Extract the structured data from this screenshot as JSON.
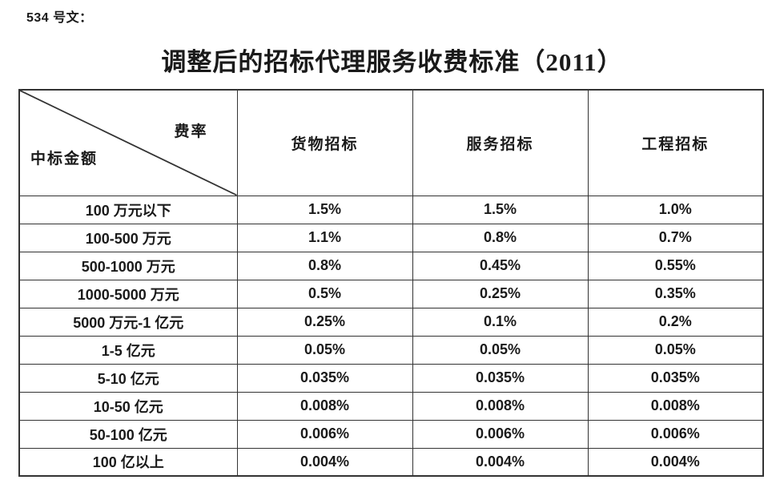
{
  "page": {
    "doc_label": "534 号文：",
    "title": "调整后的招标代理服务收费标准（2011）"
  },
  "table": {
    "corner": {
      "top_right_label": "费率",
      "bottom_left_label": "中标金额"
    },
    "columns": [
      "货物招标",
      "服务招标",
      "工程招标"
    ],
    "rows": [
      {
        "amount": "100 万元以下",
        "values": [
          "1.5%",
          "1.5%",
          "1.0%"
        ]
      },
      {
        "amount": "100-500 万元",
        "values": [
          "1.1%",
          "0.8%",
          "0.7%"
        ]
      },
      {
        "amount": "500-1000 万元",
        "values": [
          "0.8%",
          "0.45%",
          "0.55%"
        ]
      },
      {
        "amount": "1000-5000 万元",
        "values": [
          "0.5%",
          "0.25%",
          "0.35%"
        ]
      },
      {
        "amount": "5000 万元-1 亿元",
        "values": [
          "0.25%",
          "0.1%",
          "0.2%"
        ]
      },
      {
        "amount": "1-5 亿元",
        "values": [
          "0.05%",
          "0.05%",
          "0.05%"
        ]
      },
      {
        "amount": "5-10 亿元",
        "values": [
          "0.035%",
          "0.035%",
          "0.035%"
        ]
      },
      {
        "amount": "10-50 亿元",
        "values": [
          "0.008%",
          "0.008%",
          "0.008%"
        ]
      },
      {
        "amount": "50-100 亿元",
        "values": [
          "0.006%",
          "0.006%",
          "0.006%"
        ]
      },
      {
        "amount": "100 亿以上",
        "values": [
          "0.004%",
          "0.004%",
          "0.004%"
        ]
      }
    ]
  },
  "colors": {
    "text": "#1a1a1a",
    "border": "#333333",
    "background": "#ffffff"
  }
}
